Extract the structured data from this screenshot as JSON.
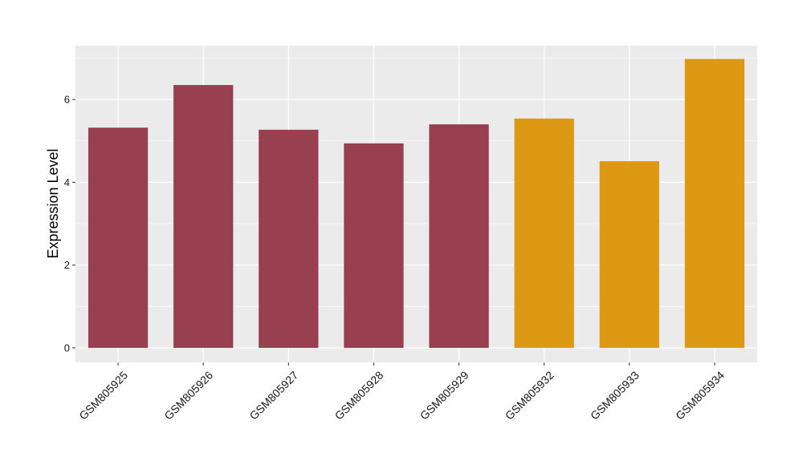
{
  "chart_data": {
    "type": "bar",
    "title": "",
    "xlabel": "",
    "ylabel": "Expression Level",
    "categories": [
      "GSM805925",
      "GSM805926",
      "GSM805927",
      "GSM805928",
      "GSM805929",
      "GSM805932",
      "GSM805933",
      "GSM805934"
    ],
    "values": [
      5.32,
      6.35,
      5.27,
      4.94,
      5.4,
      5.54,
      4.51,
      6.98
    ],
    "groups": [
      1,
      1,
      1,
      1,
      1,
      2,
      2,
      2
    ],
    "group_colors": {
      "1": "#994050",
      "2": "#DD9914"
    },
    "ylim": [
      -0.35,
      7.3
    ],
    "yticks": [
      0,
      2,
      4,
      6
    ],
    "ytick_labels": [
      "0",
      "2",
      "4",
      "6"
    ],
    "grid": true,
    "panel_background": "#EBEBEB",
    "gridline_color": "#FFFFFF",
    "legend": "none"
  }
}
